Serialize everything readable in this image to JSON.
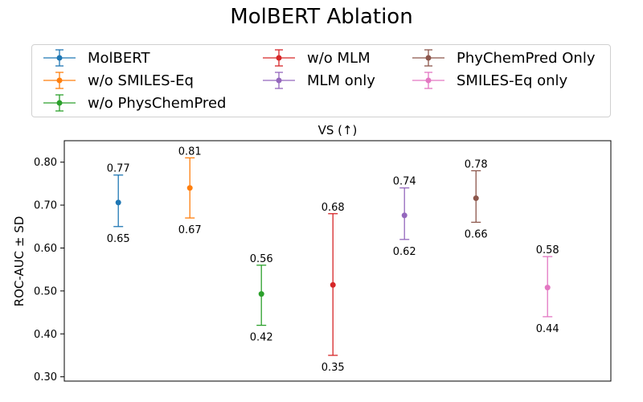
{
  "chart_data": {
    "type": "errorbar",
    "title": "MolBERT Ablation",
    "subplot_title": "VS (↑)",
    "ylabel": "ROC-AUC ± SD",
    "xlabel": "",
    "ylim": [
      0.29,
      0.85
    ],
    "yticks": [
      0.3,
      0.4,
      0.5,
      0.6,
      0.7,
      0.8
    ],
    "ytick_labels": [
      "0.30",
      "0.40",
      "0.50",
      "0.60",
      "0.70",
      "0.80"
    ],
    "grid": false,
    "legend_placement": "top, 3 columns, above plot",
    "series": [
      {
        "name": "MolBERT",
        "mean": 0.706,
        "upper": 0.77,
        "lower": 0.65,
        "upper_label": "0.77",
        "lower_label": "0.65",
        "color": "#1f77b4"
      },
      {
        "name": "w/o SMILES-Eq",
        "mean": 0.74,
        "upper": 0.81,
        "lower": 0.67,
        "upper_label": "0.81",
        "lower_label": "0.67",
        "color": "#ff7f0e"
      },
      {
        "name": "w/o PhysChemPred",
        "mean": 0.493,
        "upper": 0.56,
        "lower": 0.42,
        "upper_label": "0.56",
        "lower_label": "0.42",
        "color": "#2ca02c"
      },
      {
        "name": "w/o MLM",
        "mean": 0.514,
        "upper": 0.68,
        "lower": 0.35,
        "upper_label": "0.68",
        "lower_label": "0.35",
        "color": "#d62728"
      },
      {
        "name": "MLM only",
        "mean": 0.676,
        "upper": 0.74,
        "lower": 0.62,
        "upper_label": "0.74",
        "lower_label": "0.62",
        "color": "#9467bd"
      },
      {
        "name": "PhyChemPred Only",
        "mean": 0.716,
        "upper": 0.78,
        "lower": 0.66,
        "upper_label": "0.78",
        "lower_label": "0.66",
        "color": "#8c564b"
      },
      {
        "name": "SMILES-Eq only",
        "mean": 0.508,
        "upper": 0.58,
        "lower": 0.44,
        "upper_label": "0.58",
        "lower_label": "0.44",
        "color": "#e377c2"
      }
    ]
  }
}
